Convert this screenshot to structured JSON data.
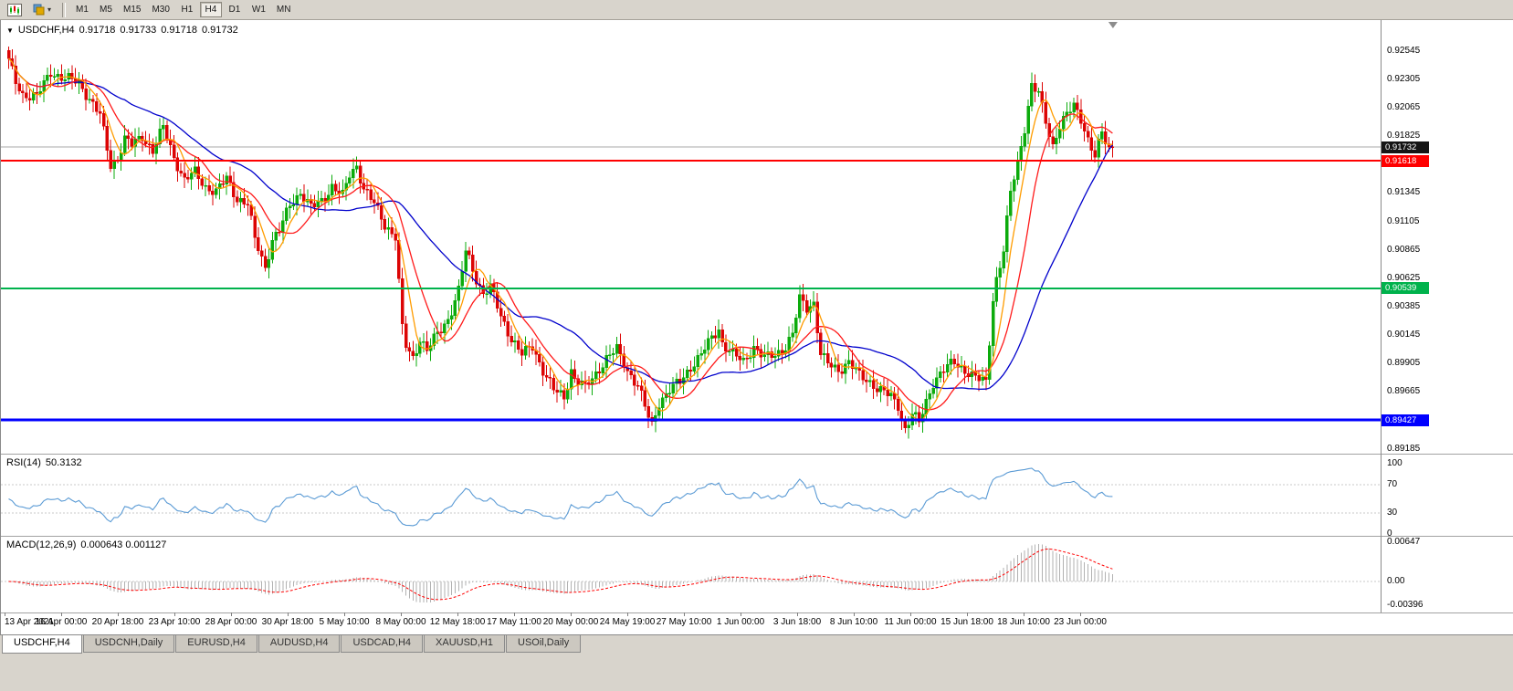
{
  "toolbar": {
    "icons": [
      "candlestick-chart-icon",
      "chart-style-dropdown-icon"
    ],
    "timeframes": [
      {
        "label": "M1",
        "active": false
      },
      {
        "label": "M5",
        "active": false
      },
      {
        "label": "M15",
        "active": false
      },
      {
        "label": "M30",
        "active": false
      },
      {
        "label": "H1",
        "active": false
      },
      {
        "label": "H4",
        "active": true
      },
      {
        "label": "D1",
        "active": false
      },
      {
        "label": "W1",
        "active": false
      },
      {
        "label": "MN",
        "active": false
      }
    ]
  },
  "chart_header": {
    "symbol_period": "USDCHF,H4",
    "open": "0.91718",
    "high": "0.91733",
    "low": "0.91718",
    "close": "0.91732"
  },
  "indicators": {
    "rsi_title": "RSI(14)",
    "rsi_value": "50.3132",
    "macd_title": "MACD(12,26,9)",
    "macd_values": "0.000643 0.001127"
  },
  "bottom_tabs": {
    "tabs": [
      {
        "label": "USDCHF,H4",
        "active": true
      },
      {
        "label": "USDCNH,Daily",
        "active": false
      },
      {
        "label": "EURUSD,H4",
        "active": false
      },
      {
        "label": "AUDUSD,H4",
        "active": false
      },
      {
        "label": "USDCAD,H4",
        "active": false
      },
      {
        "label": "XAUUSD,H1",
        "active": false
      },
      {
        "label": "USOil,Daily",
        "active": false
      }
    ]
  },
  "chart_data": {
    "type": "candlestick",
    "symbol": "USDCHF",
    "timeframe": "H4",
    "bar_count": 315,
    "bid_price": 0.91732,
    "colors": {
      "up": "#0cab0c",
      "down": "#dc0404",
      "ma_slow": "#0000cc",
      "ma_medium": "#ff1a1a",
      "ma_fast": "#ff9c00",
      "rsi_line": "#5b9bd5",
      "macd_hist": "#b2b2b2",
      "macd_signal": "#ff0000",
      "bid_line": "#a8a8a8",
      "bid_tag": "#151515"
    },
    "price_anchors": [
      [
        0,
        0.9246
      ],
      [
        2,
        0.9228
      ],
      [
        4,
        0.9218
      ],
      [
        8,
        0.9216
      ],
      [
        12,
        0.9237
      ],
      [
        15,
        0.9232
      ],
      [
        20,
        0.9228
      ],
      [
        26,
        0.92
      ],
      [
        29,
        0.9158
      ],
      [
        31,
        0.9165
      ],
      [
        33,
        0.918
      ],
      [
        35,
        0.9175
      ],
      [
        38,
        0.9183
      ],
      [
        41,
        0.917
      ],
      [
        44,
        0.919
      ],
      [
        47,
        0.9165
      ],
      [
        50,
        0.9145
      ],
      [
        53,
        0.9152
      ],
      [
        56,
        0.914
      ],
      [
        59,
        0.9135
      ],
      [
        62,
        0.9147
      ],
      [
        65,
        0.913
      ],
      [
        68,
        0.9125
      ],
      [
        70,
        0.9095
      ],
      [
        71,
        0.9088
      ],
      [
        73,
        0.9072
      ],
      [
        75,
        0.9095
      ],
      [
        77,
        0.9102
      ],
      [
        80,
        0.9125
      ],
      [
        83,
        0.9135
      ],
      [
        86,
        0.9122
      ],
      [
        89,
        0.9128
      ],
      [
        92,
        0.914
      ],
      [
        95,
        0.9132
      ],
      [
        97,
        0.915
      ],
      [
        99,
        0.9158
      ],
      [
        101,
        0.9138
      ],
      [
        104,
        0.9125
      ],
      [
        107,
        0.9108
      ],
      [
        110,
        0.9098
      ],
      [
        112,
        0.902
      ],
      [
        113,
        0.9005
      ],
      [
        115,
        0.8995
      ],
      [
        117,
        0.9012
      ],
      [
        119,
        0.9002
      ],
      [
        122,
        0.9015
      ],
      [
        125,
        0.9028
      ],
      [
        128,
        0.9052
      ],
      [
        130,
        0.9085
      ],
      [
        131,
        0.9078
      ],
      [
        133,
        0.9062
      ],
      [
        135,
        0.905
      ],
      [
        137,
        0.9055
      ],
      [
        140,
        0.903
      ],
      [
        143,
        0.9012
      ],
      [
        146,
        0.8998
      ],
      [
        149,
        0.9005
      ],
      [
        152,
        0.8985
      ],
      [
        155,
        0.8968
      ],
      [
        158,
        0.8962
      ],
      [
        160,
        0.8985
      ],
      [
        161,
        0.8978
      ],
      [
        164,
        0.897
      ],
      [
        167,
        0.8982
      ],
      [
        170,
        0.8995
      ],
      [
        173,
        0.9002
      ],
      [
        176,
        0.8985
      ],
      [
        179,
        0.8972
      ],
      [
        182,
        0.8945
      ],
      [
        183,
        0.8938
      ],
      [
        185,
        0.8958
      ],
      [
        188,
        0.8968
      ],
      [
        191,
        0.8975
      ],
      [
        194,
        0.8988
      ],
      [
        197,
        0.8998
      ],
      [
        200,
        0.9012
      ],
      [
        202,
        0.902
      ],
      [
        203,
        0.9008
      ],
      [
        206,
        0.8998
      ],
      [
        209,
        0.8992
      ],
      [
        212,
        0.9005
      ],
      [
        215,
        0.8995
      ],
      [
        218,
        0.8998
      ],
      [
        221,
        0.9005
      ],
      [
        223,
        0.9015
      ],
      [
        225,
        0.9045
      ],
      [
        227,
        0.9038
      ],
      [
        229,
        0.9042
      ],
      [
        231,
        0.8998
      ],
      [
        233,
        0.899
      ],
      [
        236,
        0.8985
      ],
      [
        239,
        0.8992
      ],
      [
        242,
        0.898
      ],
      [
        245,
        0.8975
      ],
      [
        248,
        0.8968
      ],
      [
        251,
        0.8962
      ],
      [
        253,
        0.8955
      ],
      [
        255,
        0.8935
      ],
      [
        257,
        0.8948
      ],
      [
        259,
        0.894
      ],
      [
        261,
        0.8958
      ],
      [
        263,
        0.8975
      ],
      [
        266,
        0.8985
      ],
      [
        269,
        0.8992
      ],
      [
        272,
        0.8985
      ],
      [
        275,
        0.8978
      ],
      [
        278,
        0.8975
      ],
      [
        280,
        0.9045
      ],
      [
        281,
        0.9062
      ],
      [
        283,
        0.9085
      ],
      [
        285,
        0.9135
      ],
      [
        287,
        0.916
      ],
      [
        289,
        0.919
      ],
      [
        291,
        0.9225
      ],
      [
        293,
        0.9218
      ],
      [
        295,
        0.9195
      ],
      [
        297,
        0.9175
      ],
      [
        299,
        0.9192
      ],
      [
        301,
        0.92
      ],
      [
        303,
        0.9208
      ],
      [
        305,
        0.9198
      ],
      [
        307,
        0.918
      ],
      [
        309,
        0.9165
      ],
      [
        311,
        0.9185
      ],
      [
        312,
        0.9178
      ],
      [
        313,
        0.9172
      ],
      [
        314,
        0.91732
      ]
    ],
    "moving_averages": [
      {
        "name": "slow",
        "period": 34,
        "color": "#0000cc"
      },
      {
        "name": "medium",
        "period": 13,
        "color": "#ff1a1a"
      },
      {
        "name": "fast",
        "period": 6,
        "color": "#ff9c00"
      }
    ],
    "horizontal_lines": [
      {
        "price": 0.91618,
        "color": "#ff0000",
        "width": 2
      },
      {
        "price": 0.90539,
        "color": "#00b24c",
        "width": 2
      },
      {
        "price": 0.89427,
        "color": "#0000ff",
        "width": 3
      }
    ],
    "price_axis_labels": [
      "0.92545",
      "0.92305",
      "0.92065",
      "0.91825",
      "0.91345",
      "0.91105",
      "0.90865",
      "0.90625",
      "0.90385",
      "0.90145",
      "0.89905",
      "0.89665",
      "0.89185"
    ],
    "rsi": {
      "period": 14,
      "current": 50.3132,
      "levels": [
        70,
        30
      ],
      "axis_labels": [
        "100",
        "70",
        "30",
        "0"
      ]
    },
    "macd": {
      "fast": 12,
      "slow": 26,
      "signal": 9,
      "current_macd": 0.000643,
      "current_signal": 0.001127,
      "axis_labels": [
        "0.00647",
        "0.00",
        "-0.00396"
      ]
    },
    "time_axis_labels": [
      "13 Apr 2021",
      "16 Apr 00:00",
      "20 Apr 18:00",
      "23 Apr 10:00",
      "28 Apr 00:00",
      "30 Apr 18:00",
      "5 May 10:00",
      "8 May 00:00",
      "12 May 18:00",
      "17 May 11:00",
      "20 May 00:00",
      "24 May 19:00",
      "27 May 10:00",
      "1 Jun 00:00",
      "3 Jun 18:00",
      "8 Jun 10:00",
      "11 Jun 00:00",
      "15 Jun 18:00",
      "18 Jun 10:00",
      "23 Jun 00:00"
    ]
  }
}
